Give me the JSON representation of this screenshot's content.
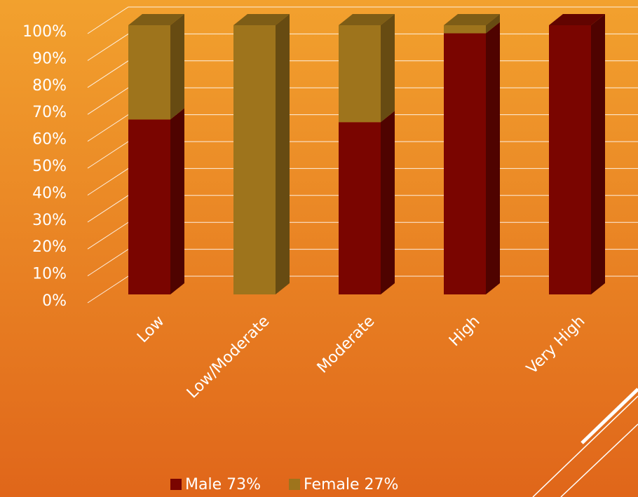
{
  "chart_data": {
    "type": "bar",
    "stacked": true,
    "categories": [
      "Low",
      "Low/Moderate",
      "Moderate",
      "High",
      "Very High"
    ],
    "series": [
      {
        "name": "Male 73%",
        "color": "#7a0500",
        "values": [
          65,
          0,
          64,
          97,
          100
        ]
      },
      {
        "name": "Female 27%",
        "color": "#9e741c",
        "values": [
          35,
          100,
          36,
          3,
          0
        ]
      }
    ],
    "ylim": [
      0,
      100
    ],
    "yticks": [
      {
        "value": 0,
        "label": "0%"
      },
      {
        "value": 10,
        "label": "10%"
      },
      {
        "value": 20,
        "label": "20%"
      },
      {
        "value": 30,
        "label": "30%"
      },
      {
        "value": 40,
        "label": "40%"
      },
      {
        "value": 50,
        "label": "50%"
      },
      {
        "value": 60,
        "label": "60%"
      },
      {
        "value": 70,
        "label": "70%"
      },
      {
        "value": 80,
        "label": "80%"
      },
      {
        "value": 90,
        "label": "90%"
      },
      {
        "value": 100,
        "label": "100%"
      }
    ],
    "grid": true
  }
}
